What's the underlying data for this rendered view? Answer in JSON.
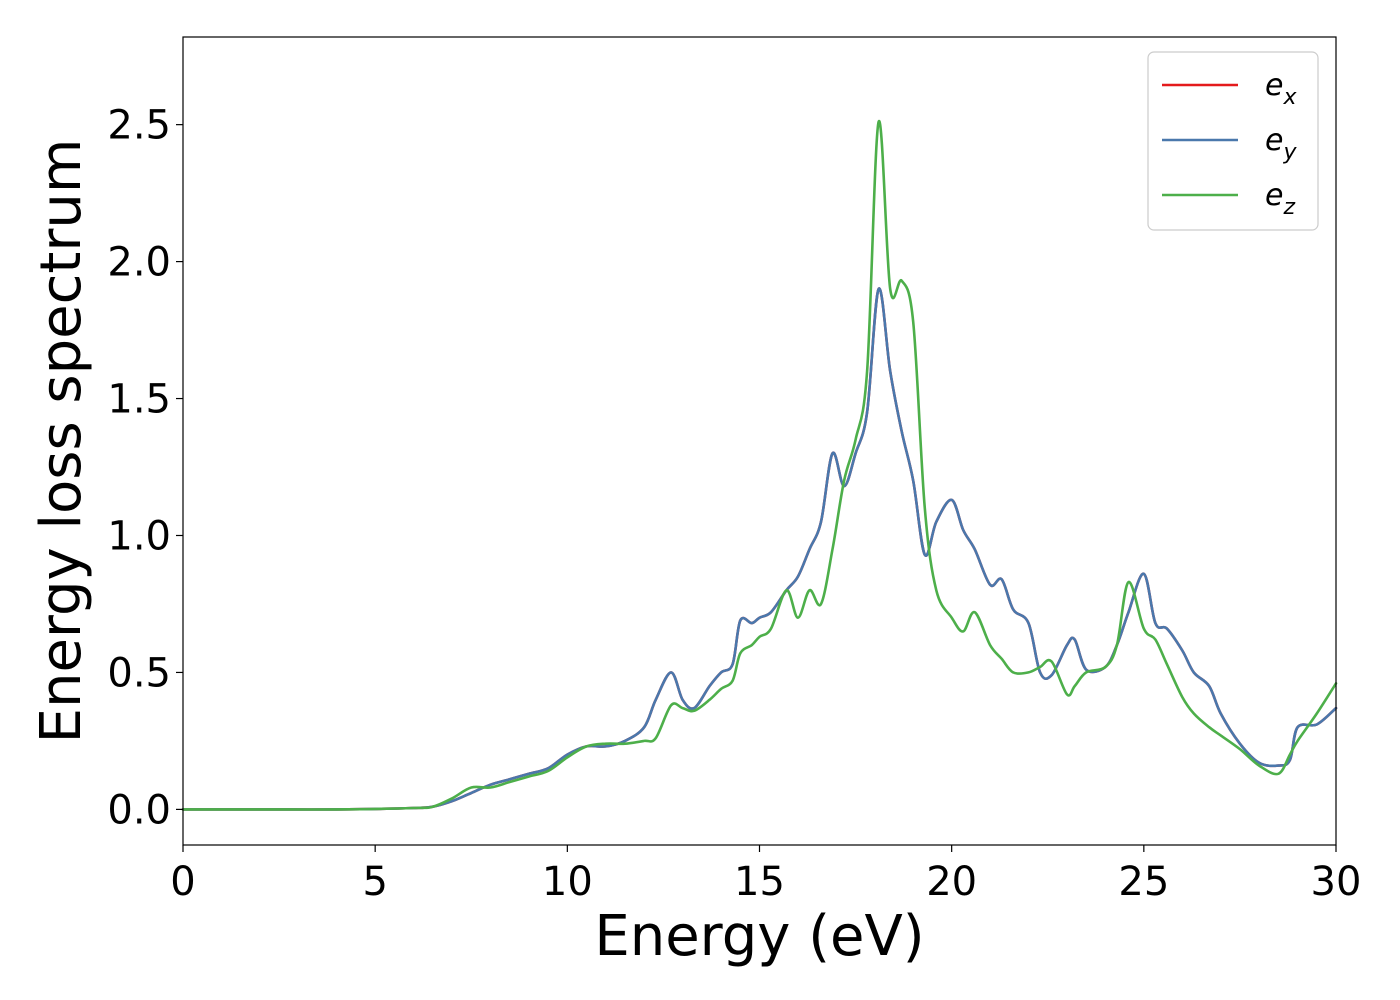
{
  "chart_data": {
    "type": "line",
    "xlabel": "Energy (eV)",
    "ylabel": "Energy loss spectrum",
    "xlim": [
      0,
      30
    ],
    "ylim": [
      -0.13,
      2.82
    ],
    "xticks": [
      "0",
      "5",
      "10",
      "15",
      "20",
      "25",
      "30"
    ],
    "yticks": [
      "0.0",
      "0.5",
      "1.0",
      "1.5",
      "2.0",
      "2.5"
    ],
    "grid": false,
    "legend_position": "top-right",
    "series": [
      {
        "name": "e",
        "subscript": "x",
        "color": "#e41a1c",
        "x": [
          0,
          2,
          4,
          6,
          6.5,
          7,
          7.5,
          8,
          8.5,
          9,
          9.5,
          10,
          10.5,
          11,
          11.5,
          12,
          12.3,
          12.7,
          13,
          13.3,
          13.7,
          14,
          14.3,
          14.5,
          14.8,
          15,
          15.3,
          15.7,
          16,
          16.3,
          16.6,
          16.9,
          17.2,
          17.5,
          17.8,
          18.1,
          18.4,
          18.7,
          19,
          19.3,
          19.6,
          20,
          20.3,
          20.6,
          21,
          21.3,
          21.6,
          22,
          22.3,
          22.6,
          23,
          23.2,
          23.5,
          24,
          24.3,
          24.6,
          25,
          25.3,
          25.6,
          26,
          26.3,
          26.7,
          27,
          27.5,
          28,
          28.5,
          28.8,
          29,
          29.5,
          30
        ],
        "y": [
          0,
          0,
          0,
          0.005,
          0.01,
          0.03,
          0.06,
          0.09,
          0.11,
          0.13,
          0.15,
          0.2,
          0.23,
          0.23,
          0.25,
          0.3,
          0.4,
          0.5,
          0.4,
          0.37,
          0.45,
          0.5,
          0.53,
          0.69,
          0.68,
          0.7,
          0.72,
          0.8,
          0.85,
          0.95,
          1.05,
          1.3,
          1.18,
          1.3,
          1.45,
          1.9,
          1.6,
          1.38,
          1.2,
          0.93,
          1.05,
          1.13,
          1.02,
          0.95,
          0.82,
          0.84,
          0.73,
          0.68,
          0.5,
          0.49,
          0.6,
          0.62,
          0.51,
          0.52,
          0.6,
          0.72,
          0.86,
          0.68,
          0.66,
          0.58,
          0.5,
          0.45,
          0.35,
          0.24,
          0.17,
          0.16,
          0.18,
          0.3,
          0.31,
          0.37
        ]
      },
      {
        "name": "e",
        "subscript": "y",
        "color": "#4a78ac",
        "x": [
          0,
          2,
          4,
          6,
          6.5,
          7,
          7.5,
          8,
          8.5,
          9,
          9.5,
          10,
          10.5,
          11,
          11.5,
          12,
          12.3,
          12.7,
          13,
          13.3,
          13.7,
          14,
          14.3,
          14.5,
          14.8,
          15,
          15.3,
          15.7,
          16,
          16.3,
          16.6,
          16.9,
          17.2,
          17.5,
          17.8,
          18.1,
          18.4,
          18.7,
          19,
          19.3,
          19.6,
          20,
          20.3,
          20.6,
          21,
          21.3,
          21.6,
          22,
          22.3,
          22.6,
          23,
          23.2,
          23.5,
          24,
          24.3,
          24.6,
          25,
          25.3,
          25.6,
          26,
          26.3,
          26.7,
          27,
          27.5,
          28,
          28.5,
          28.8,
          29,
          29.5,
          30
        ],
        "y": [
          0,
          0,
          0,
          0.005,
          0.01,
          0.03,
          0.06,
          0.09,
          0.11,
          0.13,
          0.15,
          0.2,
          0.23,
          0.23,
          0.25,
          0.3,
          0.4,
          0.5,
          0.4,
          0.37,
          0.45,
          0.5,
          0.53,
          0.69,
          0.68,
          0.7,
          0.72,
          0.8,
          0.85,
          0.95,
          1.05,
          1.3,
          1.18,
          1.3,
          1.45,
          1.9,
          1.6,
          1.38,
          1.2,
          0.93,
          1.05,
          1.13,
          1.02,
          0.95,
          0.82,
          0.84,
          0.73,
          0.68,
          0.5,
          0.49,
          0.6,
          0.62,
          0.51,
          0.52,
          0.6,
          0.72,
          0.86,
          0.68,
          0.66,
          0.58,
          0.5,
          0.45,
          0.35,
          0.24,
          0.17,
          0.16,
          0.18,
          0.3,
          0.31,
          0.37
        ]
      },
      {
        "name": "e",
        "subscript": "z",
        "color": "#4daf4a",
        "x": [
          0,
          2,
          4,
          6,
          6.5,
          7,
          7.5,
          8,
          8.5,
          9,
          9.5,
          10,
          10.5,
          11,
          11.5,
          12,
          12.3,
          12.7,
          13,
          13.3,
          13.7,
          14,
          14.3,
          14.5,
          14.8,
          15,
          15.3,
          15.7,
          16,
          16.3,
          16.6,
          16.9,
          17.2,
          17.5,
          17.8,
          18.1,
          18.4,
          18.7,
          19,
          19.3,
          19.6,
          20,
          20.3,
          20.6,
          21,
          21.3,
          21.6,
          22,
          22.3,
          22.6,
          23,
          23.2,
          23.5,
          24,
          24.3,
          24.6,
          25,
          25.3,
          25.6,
          26,
          26.3,
          26.7,
          27,
          27.5,
          28,
          28.5,
          28.8,
          29,
          29.5,
          30
        ],
        "y": [
          0,
          0,
          0,
          0.005,
          0.01,
          0.04,
          0.08,
          0.08,
          0.1,
          0.12,
          0.14,
          0.19,
          0.23,
          0.24,
          0.24,
          0.25,
          0.26,
          0.38,
          0.37,
          0.36,
          0.4,
          0.44,
          0.47,
          0.57,
          0.6,
          0.63,
          0.66,
          0.8,
          0.7,
          0.8,
          0.75,
          0.95,
          1.2,
          1.35,
          1.6,
          2.51,
          1.9,
          1.93,
          1.78,
          1.1,
          0.8,
          0.7,
          0.65,
          0.72,
          0.6,
          0.55,
          0.5,
          0.5,
          0.52,
          0.54,
          0.42,
          0.45,
          0.5,
          0.52,
          0.6,
          0.83,
          0.66,
          0.62,
          0.53,
          0.41,
          0.35,
          0.3,
          0.27,
          0.22,
          0.16,
          0.13,
          0.2,
          0.25,
          0.35,
          0.46
        ]
      }
    ]
  }
}
